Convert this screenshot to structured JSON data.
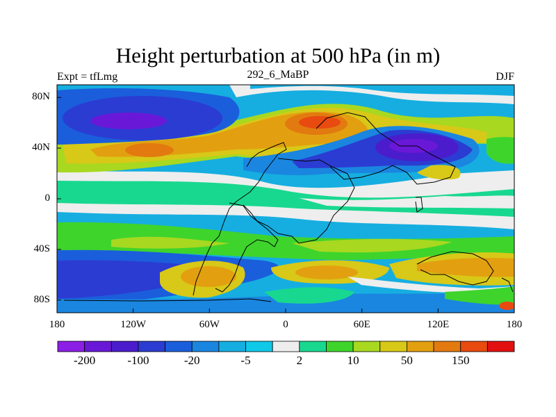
{
  "title": "Height perturbation at 500 hPa (in m)",
  "subtitle_left": "Expt = tfLmg",
  "subtitle_center": "292_6_MaBP",
  "subtitle_right": "DJF",
  "y_ticks": [
    {
      "label": "80N",
      "lat": 80
    },
    {
      "label": "40N",
      "lat": 40
    },
    {
      "label": "0",
      "lat": 0
    },
    {
      "label": "40S",
      "lat": -40
    },
    {
      "label": "80S",
      "lat": -80
    }
  ],
  "x_ticks": [
    {
      "label": "180",
      "lon": -180
    },
    {
      "label": "120W",
      "lon": -120
    },
    {
      "label": "60W",
      "lon": -60
    },
    {
      "label": "0",
      "lon": 0
    },
    {
      "label": "60E",
      "lon": 60
    },
    {
      "label": "120E",
      "lon": 120
    },
    {
      "label": "180",
      "lon": 180
    }
  ],
  "colorbar": {
    "colors": [
      "#8b1fe6",
      "#6a18d8",
      "#4a1ccc",
      "#2b3cd2",
      "#1a5edc",
      "#1a86e0",
      "#16aee0",
      "#10c8e8",
      "#eeeeee",
      "#18d890",
      "#3ed42c",
      "#a8d820",
      "#d8c818",
      "#e2a010",
      "#e27a10",
      "#e84a10",
      "#e21010"
    ],
    "labels": [
      {
        "text": "-200",
        "index": 1
      },
      {
        "text": "-100",
        "index": 3
      },
      {
        "text": "-20",
        "index": 5
      },
      {
        "text": "-5",
        "index": 7
      },
      {
        "text": "2",
        "index": 9
      },
      {
        "text": "10",
        "index": 11
      },
      {
        "text": "50",
        "index": 13
      },
      {
        "text": "150",
        "index": 15
      }
    ]
  }
}
